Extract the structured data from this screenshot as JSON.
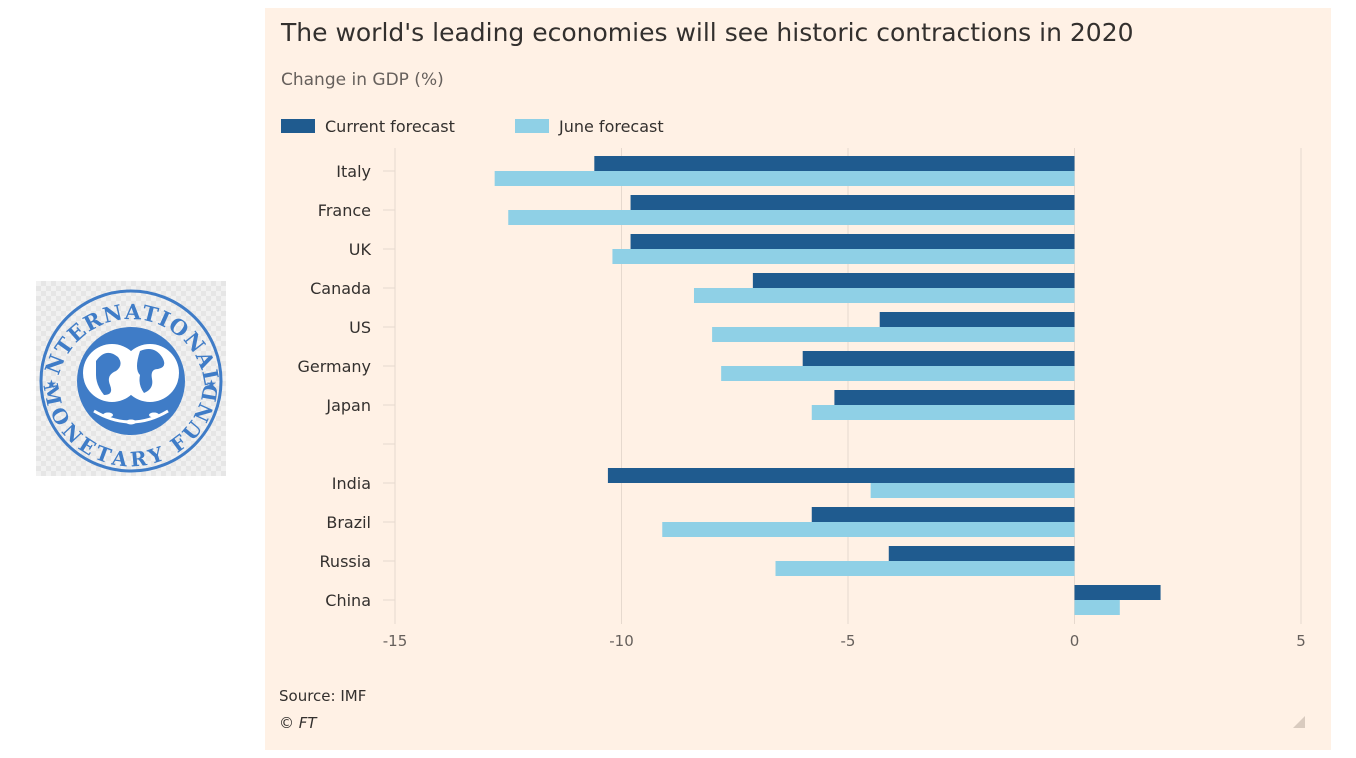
{
  "logo": {
    "name": "International Monetary Fund seal",
    "text_top": "INTERNATIONAL",
    "text_bottom": "MONETARY FUND",
    "color": "#3f7cc7"
  },
  "colors": {
    "background": "#fff1e5",
    "current_forecast": "#1f5b8f",
    "june_forecast": "#8fd0e6",
    "gridline": "#e6d9ce",
    "text": "#33302e",
    "muted_text": "#66605c"
  },
  "chart_data": {
    "type": "bar",
    "orientation": "horizontal",
    "title": "The world's leading economies will see historic contractions in 2020",
    "subtitle": "Change in GDP (%)",
    "categories": [
      "Italy",
      "France",
      "UK",
      "Canada",
      "US",
      "Germany",
      "Japan",
      "",
      "India",
      "Brazil",
      "Russia",
      "China"
    ],
    "series": [
      {
        "name": "Current forecast",
        "color": "#1f5b8f",
        "values": [
          -10.6,
          -9.8,
          -9.8,
          -7.1,
          -4.3,
          -6.0,
          -5.3,
          null,
          -10.3,
          -5.8,
          -4.1,
          1.9
        ]
      },
      {
        "name": "June forecast",
        "color": "#8fd0e6",
        "values": [
          -12.8,
          -12.5,
          -10.2,
          -8.4,
          -8.0,
          -7.8,
          -5.8,
          null,
          -4.5,
          -9.1,
          -6.6,
          1.0
        ]
      }
    ],
    "xlim": [
      -15,
      5
    ],
    "xticks": [
      "-15",
      "-10",
      "-5",
      "0",
      "5"
    ],
    "grid": true,
    "legend_position": "top-left",
    "source": "Source: IMF",
    "credit": "© FT"
  }
}
